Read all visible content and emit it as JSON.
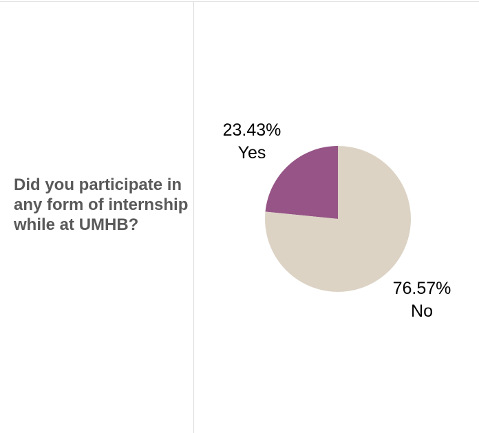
{
  "question": "Did you participate in any form of internship while at UMHB?",
  "chart_data": {
    "type": "pie",
    "slices": [
      {
        "label": "Yes",
        "value": 23.43,
        "value_label": "23.43%",
        "color": "#965586"
      },
      {
        "label": "No",
        "value": 76.57,
        "value_label": "76.57%",
        "color": "#dcd3c5"
      }
    ],
    "start": "12 o'clock, counterclockwise",
    "legend": "none"
  }
}
